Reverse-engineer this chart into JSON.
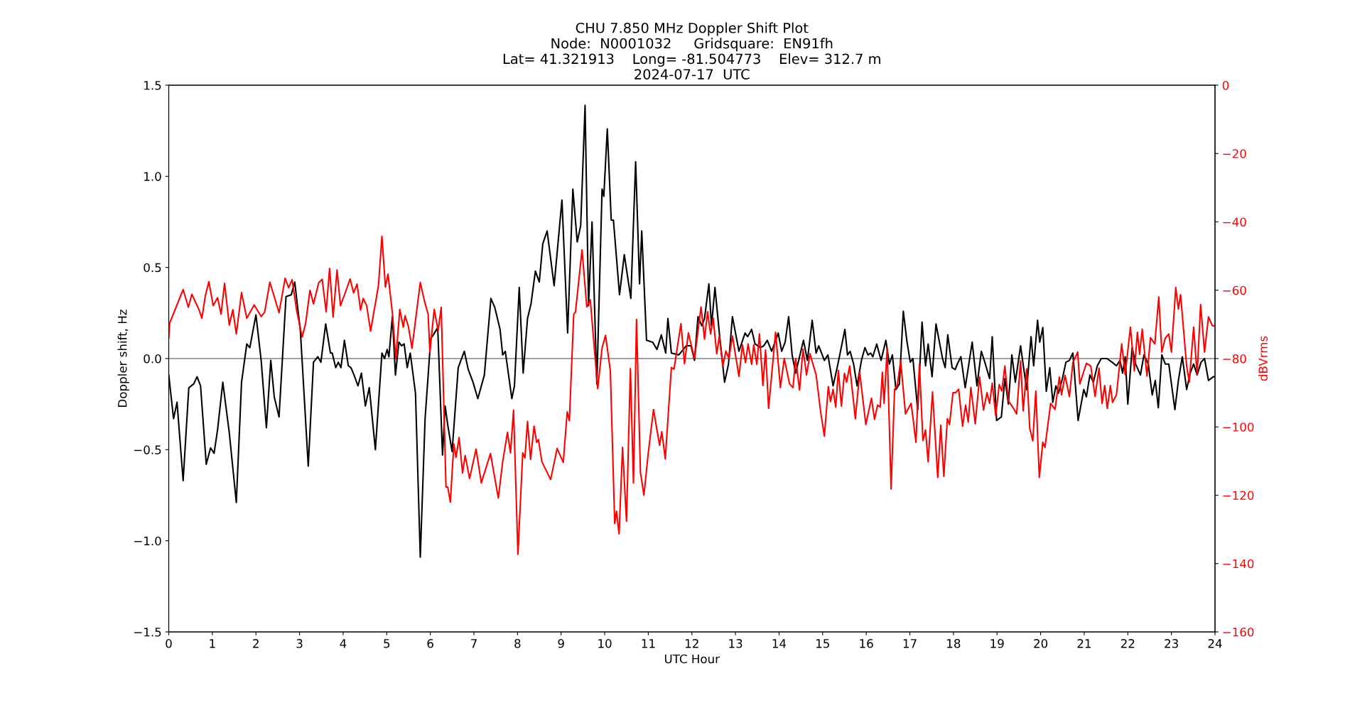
{
  "chart_data": {
    "type": "line",
    "title": "CHU 7.850 MHz Doppler Shift Plot\nNode:  N0001032     Gridsquare:  EN91fh\nLat= 41.321913    Long= -81.504773    Elev= 312.7 m\n2024-07-17  UTC",
    "xlabel": "UTC Hour",
    "ylabel": "Doppler shift, Hz",
    "y2label": "dBVrms",
    "xlim": [
      0,
      24
    ],
    "xticks": [
      0,
      1,
      2,
      3,
      4,
      5,
      6,
      7,
      8,
      9,
      10,
      11,
      12,
      13,
      14,
      15,
      16,
      17,
      18,
      19,
      20,
      21,
      22,
      23,
      24
    ],
    "ylim": [
      -1.5,
      1.5
    ],
    "yticks": [
      {
        "value": -1.5,
        "label": "−1.5"
      },
      {
        "value": -1,
        "label": "−1.0"
      },
      {
        "value": -0.5,
        "label": "−0.5"
      },
      {
        "value": 0,
        "label": "0.0"
      },
      {
        "value": 0.5,
        "label": "0.5"
      },
      {
        "value": 1,
        "label": "1.0"
      },
      {
        "value": 1.5,
        "label": "1.5"
      }
    ],
    "y2lim": [
      -160,
      0
    ],
    "y2ticks": [
      {
        "value": -160,
        "label": "−160"
      },
      {
        "value": -140,
        "label": "−140"
      },
      {
        "value": -120,
        "label": "−120"
      },
      {
        "value": -100,
        "label": "−100"
      },
      {
        "value": -80,
        "label": "−80"
      },
      {
        "value": -60,
        "label": "−60"
      },
      {
        "value": -40,
        "label": "−40"
      },
      {
        "value": -20,
        "label": "−20"
      },
      0
    ],
    "grid": false,
    "ref_lines": [
      {
        "axis": "y",
        "value": 0,
        "color": "#808080"
      }
    ],
    "series": [
      {
        "color": "#000000",
        "axis": "y",
        "x": [
          0,
          0.11,
          0.19,
          0.33,
          0.46,
          0.57,
          0.65,
          0.73,
          0.86,
          0.96,
          1.04,
          1.12,
          1.24,
          1.39,
          1.55,
          1.67,
          1.79,
          1.86,
          2.0,
          2.12,
          2.24,
          2.34,
          2.42,
          2.53,
          2.69,
          2.81,
          2.89,
          3.02,
          3.2,
          3.32,
          3.42,
          3.49,
          3.6,
          3.71,
          3.75,
          3.83,
          3.89,
          3.95,
          4.03,
          4.12,
          4.18,
          4.25,
          4.34,
          4.42,
          4.51,
          4.6,
          4.74,
          4.89,
          4.95,
          5.01,
          5.05,
          5.13,
          5.2,
          5.28,
          5.34,
          5.4,
          5.47,
          5.54,
          5.66,
          5.77,
          5.88,
          6.01,
          6.07,
          6.17,
          6.28,
          6.34,
          6.41,
          6.5,
          6.64,
          6.78,
          6.87,
          6.98,
          7.09,
          7.24,
          7.39,
          7.48,
          7.6,
          7.66,
          7.72,
          7.87,
          7.93,
          8.04,
          8.13,
          8.23,
          8.31,
          8.41,
          8.5,
          8.58,
          8.68,
          8.84,
          9.02,
          9.15,
          9.27,
          9.37,
          9.45,
          9.55,
          9.63,
          9.71,
          9.82,
          9.94,
          9.98,
          10.06,
          10.15,
          10.2,
          10.34,
          10.45,
          10.6,
          10.71,
          10.8,
          10.85,
          10.96,
          11.1,
          11.2,
          11.3,
          11.4,
          11.45,
          11.53,
          11.7,
          11.87,
          11.98,
          12.06,
          12.14,
          12.23,
          12.29,
          12.39,
          12.45,
          12.53,
          12.63,
          12.75,
          12.84,
          12.93,
          13.08,
          13.22,
          13.28,
          13.37,
          13.45,
          13.57,
          13.65,
          13.73,
          13.83,
          13.98,
          14.06,
          14.14,
          14.22,
          14.3,
          14.38,
          14.56,
          14.65,
          14.76,
          14.85,
          14.91,
          15.04,
          15.12,
          15.24,
          15.35,
          15.51,
          15.57,
          15.63,
          15.71,
          15.79,
          15.89,
          15.97,
          16.04,
          16.1,
          16.15,
          16.24,
          16.34,
          16.45,
          16.53,
          16.6,
          16.68,
          16.76,
          16.85,
          16.93,
          17.01,
          17.07,
          17.18,
          17.28,
          17.36,
          17.42,
          17.51,
          17.6,
          17.75,
          17.81,
          17.87,
          17.97,
          18.04,
          18.09,
          18.17,
          18.27,
          18.43,
          18.54,
          18.64,
          18.72,
          18.83,
          18.89,
          18.99,
          19.1,
          19.18,
          19.26,
          19.34,
          19.42,
          19.54,
          19.68,
          19.78,
          19.84,
          19.93,
          19.98,
          20.05,
          20.13,
          20.21,
          20.28,
          20.35,
          20.41,
          20.5,
          20.58,
          20.66,
          20.74,
          20.86,
          20.99,
          21.05,
          21.13,
          21.21,
          21.3,
          21.39,
          21.52,
          21.64,
          21.74,
          21.82,
          21.88,
          21.94,
          22.0,
          22.1,
          22.18,
          22.29,
          22.37,
          22.47,
          22.56,
          22.63,
          22.7,
          22.78,
          22.86,
          22.94,
          23.08,
          23.16,
          23.25,
          23.35,
          23.43,
          23.51,
          23.59,
          23.68,
          23.76,
          23.85,
          23.96,
          24
        ],
        "values": [
          -0.09,
          -0.33,
          -0.24,
          -0.67,
          -0.16,
          -0.14,
          -0.1,
          -0.15,
          -0.58,
          -0.49,
          -0.52,
          -0.39,
          -0.13,
          -0.41,
          -0.79,
          -0.13,
          0.08,
          0.06,
          0.24,
          -0.01,
          -0.38,
          -0.01,
          -0.21,
          -0.32,
          0.34,
          0.35,
          0.42,
          0.15,
          -0.59,
          -0.02,
          0.01,
          -0.02,
          0.19,
          0.03,
          0.03,
          -0.05,
          -0.02,
          -0.05,
          0.1,
          -0.04,
          -0.05,
          -0.09,
          -0.15,
          -0.08,
          -0.26,
          -0.16,
          -0.5,
          0.03,
          0,
          0.05,
          0.01,
          0.23,
          -0.09,
          0.09,
          0.07,
          0.08,
          -0.05,
          0.03,
          -0.19,
          -1.09,
          -0.33,
          0.11,
          0.13,
          0.17,
          -0.53,
          -0.26,
          -0.38,
          -0.51,
          -0.05,
          0.04,
          -0.06,
          -0.13,
          -0.22,
          -0.09,
          0.33,
          0.28,
          0.16,
          0.02,
          0.04,
          -0.22,
          -0.15,
          0.39,
          -0.08,
          0.22,
          0.3,
          0.48,
          0.42,
          0.63,
          0.7,
          0.4,
          0.87,
          0.14,
          0.93,
          0.64,
          0.73,
          1.39,
          0.29,
          0.75,
          -0.14,
          0.93,
          0.89,
          1.26,
          0.76,
          0.76,
          0.35,
          0.57,
          0.33,
          1.08,
          0.41,
          0.7,
          0.1,
          0.09,
          0.05,
          0.13,
          0.03,
          0.22,
          0.03,
          0.02,
          0.07,
          0.07,
          -0.01,
          0.23,
          0.18,
          0.22,
          0.41,
          0.18,
          0.39,
          0.14,
          -0.13,
          -0.03,
          0.23,
          0.04,
          0.14,
          0.12,
          0.16,
          0.08,
          0.06,
          0.07,
          0.1,
          0.04,
          0.14,
          0.04,
          0.09,
          0.23,
          0.02,
          -0.08,
          0.1,
          -0.01,
          0.21,
          0.03,
          0.07,
          -0.01,
          0.02,
          -0.15,
          -0.03,
          0.16,
          0.02,
          0.04,
          -0.03,
          -0.15,
          -0.01,
          0.06,
          0.02,
          0.03,
          0.01,
          0.08,
          -0.01,
          0.1,
          -0.03,
          0.02,
          -0.17,
          -0.14,
          0.26,
          0.1,
          -0.02,
          0,
          -0.28,
          0.2,
          -0.04,
          0.08,
          -0.1,
          0.19,
          0,
          -0.05,
          0.13,
          -0.05,
          -0.06,
          -0.03,
          0.01,
          -0.16,
          0.09,
          -0.15,
          0.04,
          -0.02,
          -0.11,
          0.12,
          -0.34,
          -0.32,
          -0.11,
          -0.25,
          0.02,
          -0.13,
          0.07,
          -0.17,
          0.12,
          -0.04,
          0.21,
          0.09,
          0.17,
          -0.18,
          -0.05,
          -0.24,
          -0.15,
          -0.19,
          -0.11,
          -0.02,
          -0.01,
          0.03,
          -0.34,
          -0.17,
          -0.21,
          -0.09,
          -0.13,
          -0.04,
          0,
          0,
          -0.02,
          -0.04,
          -0.01,
          -0.08,
          0.01,
          -0.25,
          0.06,
          -0.03,
          -0.09,
          0.02,
          -0.03,
          -0.2,
          -0.12,
          -0.27,
          0.02,
          -0.03,
          -0.03,
          -0.28,
          -0.12,
          0.01,
          -0.17,
          -0.08,
          -0.03,
          -0.09,
          -0.02,
          0,
          -0.12,
          -0.1,
          -0.1
        ]
      },
      {
        "color": "#ff0000",
        "axis": "y2",
        "x": [
          0,
          0.02,
          0.33,
          0.45,
          0.53,
          0.69,
          0.76,
          0.84,
          0.92,
          1.02,
          1.12,
          1.2,
          1.28,
          1.39,
          1.47,
          1.55,
          1.67,
          1.79,
          1.96,
          2.12,
          2.2,
          2.32,
          2.53,
          2.67,
          2.75,
          2.83,
          2.93,
          3.06,
          3.14,
          3.24,
          3.32,
          3.44,
          3.52,
          3.61,
          3.69,
          3.77,
          3.86,
          3.94,
          4.03,
          4.16,
          4.24,
          4.32,
          4.4,
          4.46,
          4.54,
          4.63,
          4.81,
          4.89,
          4.97,
          5.03,
          5.13,
          5.21,
          5.3,
          5.38,
          5.42,
          5.5,
          5.58,
          5.77,
          5.87,
          5.95,
          5.99,
          6.09,
          6.18,
          6.25,
          6.36,
          6.4,
          6.46,
          6.54,
          6.59,
          6.66,
          6.74,
          6.8,
          6.9,
          7.05,
          7.17,
          7.38,
          7.56,
          7.66,
          7.77,
          7.84,
          7.91,
          8.01,
          8.12,
          8.17,
          8.23,
          8.3,
          8.38,
          8.44,
          8.48,
          8.56,
          8.76,
          8.91,
          9.05,
          9.14,
          9.19,
          9.29,
          9.33,
          9.48,
          9.59,
          9.67,
          9.84,
          9.94,
          10.02,
          10.13,
          10.23,
          10.27,
          10.33,
          10.41,
          10.5,
          10.59,
          10.66,
          10.73,
          10.82,
          10.9,
          11.0,
          11.12,
          11.26,
          11.31,
          11.39,
          11.53,
          11.59,
          11.75,
          11.83,
          11.92,
          12.06,
          12.21,
          12.29,
          12.36,
          12.43,
          12.49,
          12.57,
          12.63,
          12.71,
          12.78,
          12.85,
          12.93,
          13.08,
          13.16,
          13.23,
          13.29,
          13.37,
          13.42,
          13.49,
          13.55,
          13.63,
          13.69,
          13.76,
          13.92,
          14.03,
          14.12,
          14.24,
          14.32,
          14.38,
          14.47,
          14.55,
          14.63,
          14.71,
          14.85,
          14.96,
          15.04,
          15.13,
          15.18,
          15.24,
          15.3,
          15.36,
          15.43,
          15.5,
          15.55,
          15.62,
          15.75,
          15.85,
          15.99,
          16.12,
          16.19,
          16.26,
          16.32,
          16.37,
          16.41,
          16.48,
          16.57,
          16.65,
          16.71,
          16.79,
          16.9,
          17.03,
          17.14,
          17.22,
          17.3,
          17.36,
          17.42,
          17.52,
          17.64,
          17.71,
          17.78,
          17.86,
          17.91,
          17.99,
          18.05,
          18.12,
          18.21,
          18.28,
          18.34,
          18.4,
          18.5,
          18.6,
          18.69,
          18.77,
          18.83,
          18.89,
          18.97,
          19.05,
          19.11,
          19.18,
          19.26,
          19.37,
          19.45,
          19.54,
          19.6,
          19.68,
          19.75,
          19.82,
          19.89,
          19.97,
          20.05,
          20.1,
          20.23,
          20.33,
          20.43,
          20.48,
          20.56,
          20.66,
          20.74,
          20.85,
          20.9,
          21.05,
          21.15,
          21.25,
          21.34,
          21.41,
          21.47,
          21.53,
          21.6,
          21.65,
          21.74,
          21.86,
          21.94,
          22.06,
          22.15,
          22.22,
          22.27,
          22.33,
          22.44,
          22.52,
          22.62,
          22.71,
          22.78,
          22.86,
          22.94,
          23.0,
          23.1,
          23.16,
          23.21,
          23.35,
          23.41,
          23.51,
          23.59,
          23.67,
          23.76,
          23.85,
          23.94,
          24
        ],
        "values": [
          -74,
          -69.7,
          -59.8,
          -65,
          -61.2,
          -65.6,
          -68.2,
          -61.6,
          -57.5,
          -64.5,
          -62.2,
          -67,
          -58,
          -70.2,
          -65.7,
          -72.8,
          -60.7,
          -68.2,
          -64.3,
          -67.7,
          -66.4,
          -57.6,
          -66.6,
          -56.5,
          -59.3,
          -56.9,
          -65.6,
          -73.7,
          -69.7,
          -60,
          -64,
          -57.8,
          -56.8,
          -66.3,
          -53.6,
          -67.9,
          -54.1,
          -64.5,
          -61.4,
          -56.7,
          -60.8,
          -58.2,
          -65.8,
          -62.4,
          -64.5,
          -72,
          -58.7,
          -44.2,
          -59.1,
          -55.3,
          -66.6,
          -80.1,
          -65.6,
          -70.8,
          -67.5,
          -70.8,
          -77,
          -57.7,
          -63.4,
          -67,
          -78.1,
          -65.6,
          -71.8,
          -65,
          -117.6,
          -117.6,
          -122,
          -105,
          -108.9,
          -103.1,
          -113.5,
          -108.4,
          -115.1,
          -106.5,
          -116.4,
          -107.8,
          -120.8,
          -110.2,
          -101.6,
          -107.6,
          -95.1,
          -137.3,
          -107.6,
          -109.1,
          -98.4,
          -109.5,
          -99.8,
          -104.5,
          -103.7,
          -110.2,
          -115.4,
          -106.3,
          -110.4,
          -95.6,
          -98.2,
          -67,
          -66.4,
          -48.2,
          -64.9,
          -62.8,
          -88.8,
          -76.9,
          -73.2,
          -83.6,
          -128.3,
          -124.7,
          -131.3,
          -106,
          -127.6,
          -82.9,
          -116.4,
          -68.6,
          -113.3,
          -120,
          -107.6,
          -94.9,
          -105.4,
          -101.4,
          -109.4,
          -82.6,
          -83.1,
          -69.8,
          -81.5,
          -72.5,
          -80,
          -64.9,
          -74.3,
          -66.3,
          -72.8,
          -68.2,
          -78.6,
          -73.4,
          -82.2,
          -77.8,
          -80,
          -73.4,
          -85.2,
          -76,
          -81.2,
          -75.7,
          -81.7,
          -76,
          -81.7,
          -72.8,
          -87.9,
          -77.5,
          -94.6,
          -72.3,
          -88.5,
          -80,
          -87.4,
          -88.5,
          -80,
          -89.2,
          -77.2,
          -84.8,
          -78.6,
          -84.8,
          -96.2,
          -102.7,
          -88.2,
          -92.6,
          -89,
          -94.2,
          -83.5,
          -93.9,
          -84.3,
          -86.9,
          -82.2,
          -97.6,
          -84,
          -99.3,
          -91.6,
          -97.8,
          -93.6,
          -94.2,
          -84,
          -93.1,
          -77,
          -118.2,
          -89,
          -88,
          -80.7,
          -96.2,
          -93.1,
          -104.5,
          -81.7,
          -104,
          -100.9,
          -110.2,
          -89.8,
          -114.8,
          -99.5,
          -114.5,
          -97.6,
          -99.3,
          -90,
          -90,
          -89,
          -99.8,
          -93.6,
          -98.6,
          -88.5,
          -99.1,
          -85.4,
          -95.1,
          -90,
          -93.1,
          -87.2,
          -96.7,
          -87.6,
          -89.5,
          -82.2,
          -92.4,
          -94.4,
          -96.2,
          -80.7,
          -95.3,
          -83,
          -100.3,
          -104.1,
          -89.5,
          -114.8,
          -104.5,
          -106,
          -93.1,
          -94.9,
          -85.4,
          -90.6,
          -84.9,
          -91.1,
          -81.2,
          -78.1,
          -87.4,
          -81.4,
          -82.2,
          -91.1,
          -82.8,
          -93.1,
          -87.9,
          -94.6,
          -87.9,
          -92.8,
          -90.6,
          -75.7,
          -84.7,
          -70.8,
          -83.6,
          -72.3,
          -78.8,
          -71.4,
          -85.1,
          -73.9,
          -75.7,
          -62,
          -78.1,
          -74,
          -72.8,
          -78.1,
          -59.2,
          -65.5,
          -61.3,
          -82.2,
          -86.9,
          -70.8,
          -84.7,
          -64.2,
          -78.1,
          -67.8,
          -70.4,
          -70.5
        ]
      }
    ]
  }
}
